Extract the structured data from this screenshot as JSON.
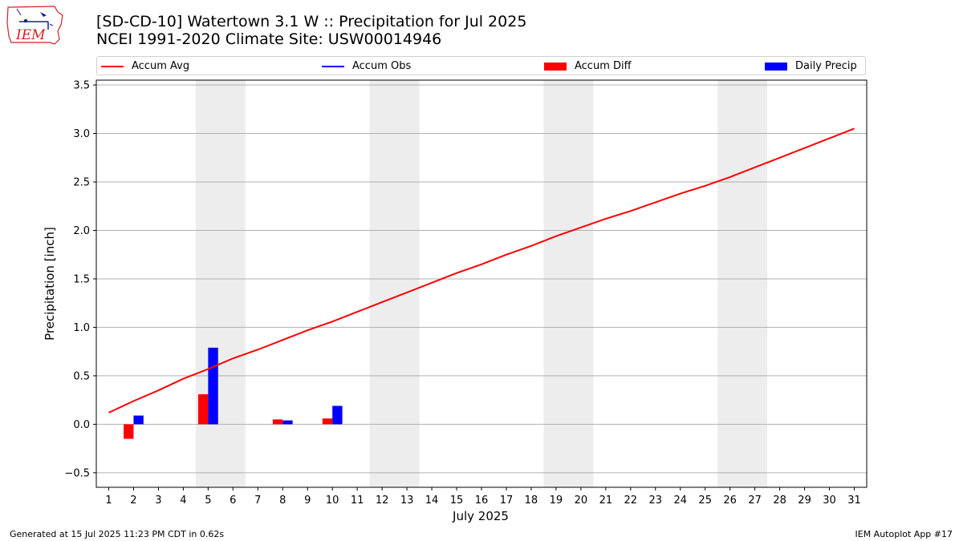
{
  "header": {
    "title_line1": "[SD-CD-10] Watertown 3.1 W :: Precipitation for Jul 2025",
    "title_line2": "NCEI 1991-2020 Climate Site: USW00014946"
  },
  "logo": {
    "text": "IEM"
  },
  "footer": {
    "generated": "Generated at 15 Jul 2025 11:23 PM CDT in 0.62s",
    "app": "IEM Autoplot App #17"
  },
  "colors": {
    "accum_avg": "#ff0000",
    "accum_obs": "#0000ff",
    "accum_diff": "#ff0000",
    "daily_precip": "#0000ff",
    "weekend_shade": "#ededed",
    "grid": "#b0b0b0"
  },
  "chart_data": {
    "type": "bar",
    "xlabel": "July 2025",
    "ylabel": "Precipitation [inch]",
    "ylim": [
      -0.65,
      3.55
    ],
    "xlim": [
      0.5,
      31.5
    ],
    "yticks": [
      -0.5,
      0.0,
      0.5,
      1.0,
      1.5,
      2.0,
      2.5,
      3.0,
      3.5
    ],
    "ytick_labels": [
      "−0.5",
      "0.0",
      "0.5",
      "1.0",
      "1.5",
      "2.0",
      "2.5",
      "3.0",
      "3.5"
    ],
    "x": [
      1,
      2,
      3,
      4,
      5,
      6,
      7,
      8,
      9,
      10,
      11,
      12,
      13,
      14,
      15,
      16,
      17,
      18,
      19,
      20,
      21,
      22,
      23,
      24,
      25,
      26,
      27,
      28,
      29,
      30,
      31
    ],
    "x_labels": [
      "1",
      "2",
      "3",
      "4",
      "5",
      "6",
      "7",
      "8",
      "9",
      "10",
      "11",
      "12",
      "13",
      "14",
      "15",
      "16",
      "17",
      "18",
      "19",
      "20",
      "21",
      "22",
      "23",
      "24",
      "25",
      "26",
      "27",
      "28",
      "29",
      "30",
      "31"
    ],
    "grid": true,
    "legend_placement": "top",
    "weekend_shading": [
      [
        4.5,
        6.5
      ],
      [
        11.5,
        13.5
      ],
      [
        18.5,
        20.5
      ],
      [
        25.5,
        27.5
      ]
    ],
    "legend": [
      "Accum Avg",
      "Accum Obs",
      "Accum Diff",
      "Daily Precip"
    ],
    "series": [
      {
        "name": "Accum Avg",
        "kind": "line",
        "values": [
          0.12,
          0.24,
          0.35,
          0.47,
          0.57,
          0.68,
          0.77,
          0.87,
          0.97,
          1.06,
          1.16,
          1.26,
          1.36,
          1.46,
          1.56,
          1.65,
          1.75,
          1.84,
          1.94,
          2.03,
          2.12,
          2.2,
          2.29,
          2.38,
          2.46,
          2.55,
          2.65,
          2.75,
          2.85,
          2.95,
          3.05
        ]
      },
      {
        "name": "Accum Diff",
        "kind": "bar",
        "x": [
          2,
          5,
          8,
          10
        ],
        "values": [
          -0.15,
          0.31,
          0.05,
          0.06
        ]
      },
      {
        "name": "Daily Precip",
        "kind": "bar",
        "x": [
          2,
          5,
          8,
          10
        ],
        "values": [
          0.09,
          0.79,
          0.04,
          0.19
        ]
      }
    ]
  }
}
